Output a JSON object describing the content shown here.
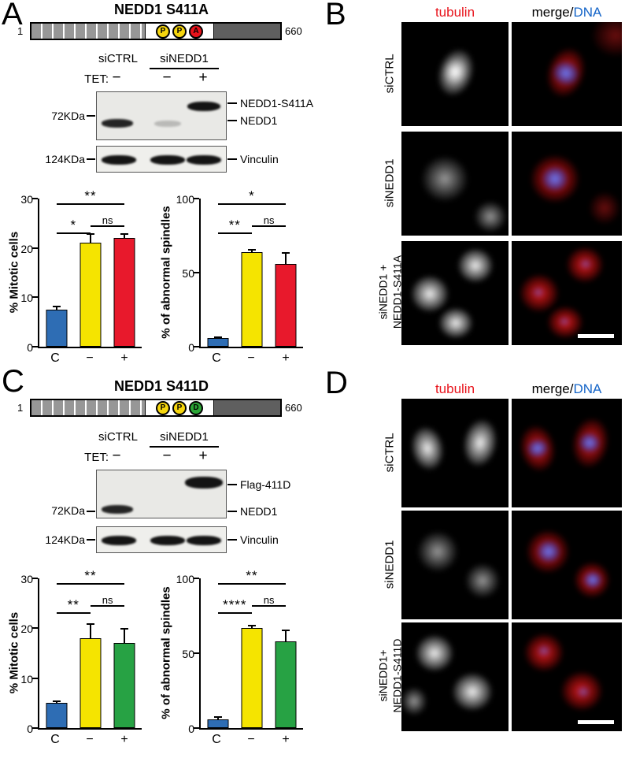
{
  "colors": {
    "tubulin_header": "#e8131b",
    "dna_header": "#1565c8",
    "bar_blue": "#2e6db4",
    "bar_yellow": "#f5e400",
    "bar_red": "#e8192c",
    "bar_green": "#27a244"
  },
  "site_colors": {
    "P": "#f6d60e",
    "A": "#e8131b",
    "D": "#2ba536"
  },
  "panels": {
    "A": {
      "label": "A",
      "title": "NEDD1 S411A",
      "schematic": {
        "start_aa": "1",
        "end_aa": "660",
        "sites": [
          {
            "letter": "P"
          },
          {
            "letter": "P"
          },
          {
            "letter": "A"
          }
        ]
      },
      "blot": {
        "group_labels": [
          "siCTRL",
          "siNEDD1"
        ],
        "tet_label": "TET:",
        "tet_values": [
          "−",
          "−",
          "+"
        ],
        "marker_labels": [
          "72KDa",
          "124KDa"
        ],
        "band_labels": [
          "NEDD1-S411A",
          "NEDD1"
        ],
        "loading_label": "Vinculin"
      }
    },
    "B": {
      "label": "B",
      "headers": {
        "tubulin": "tubulin",
        "merge": "merge/",
        "dna": "DNA"
      },
      "rows": [
        {
          "label_lines": [
            "siCTRL"
          ]
        },
        {
          "label_lines": [
            "siNEDD1"
          ]
        },
        {
          "label_lines": [
            "siNEDD1 +",
            "NEDD1-S411A"
          ]
        }
      ]
    },
    "C": {
      "label": "C",
      "title": "NEDD1 S411D",
      "schematic": {
        "start_aa": "1",
        "end_aa": "660",
        "sites": [
          {
            "letter": "P"
          },
          {
            "letter": "P"
          },
          {
            "letter": "D"
          }
        ]
      },
      "blot": {
        "group_labels": [
          "siCTRL",
          "siNEDD1"
        ],
        "tet_label": "TET:",
        "tet_values": [
          "−",
          "−",
          "+"
        ],
        "marker_labels": [
          "72KDa",
          "124KDa"
        ],
        "band_labels": [
          "Flag-411D",
          "NEDD1"
        ],
        "loading_label": "Vinculin"
      }
    },
    "D": {
      "label": "D",
      "headers": {
        "tubulin": "tubulin",
        "merge": "merge/",
        "dna": "DNA"
      },
      "rows": [
        {
          "label_lines": [
            "siCTRL"
          ]
        },
        {
          "label_lines": [
            "siNEDD1"
          ]
        },
        {
          "label_lines": [
            "siNEDD1+",
            "NEDD1-S411D"
          ]
        }
      ]
    }
  },
  "chart_data": [
    {
      "type": "bar",
      "panel": "A",
      "ylabel": "% Mitotic cells",
      "categories": [
        "C",
        "−",
        "+"
      ],
      "values": [
        7.5,
        21,
        22
      ],
      "errors": [
        0.8,
        2,
        1
      ],
      "colors": [
        "#2e6db4",
        "#f5e400",
        "#e8192c"
      ],
      "ylim": [
        0,
        30
      ],
      "yticks": [
        0,
        10,
        20,
        30
      ],
      "grid": false,
      "legend": "none",
      "significance": [
        {
          "pair": [
            0,
            1
          ],
          "label": "*",
          "row": "low"
        },
        {
          "pair": [
            1,
            2
          ],
          "label": "ns",
          "row": "mid"
        },
        {
          "pair": [
            0,
            2
          ],
          "label": "**",
          "row": "top"
        }
      ]
    },
    {
      "type": "bar",
      "panel": "A",
      "ylabel": "% of abnormal spindles",
      "categories": [
        "C",
        "−",
        "+"
      ],
      "values": [
        6,
        64,
        56
      ],
      "errors": [
        1,
        2,
        8
      ],
      "colors": [
        "#2e6db4",
        "#f5e400",
        "#e8192c"
      ],
      "ylim": [
        0,
        100
      ],
      "yticks": [
        0,
        50,
        100
      ],
      "grid": false,
      "legend": "none",
      "significance": [
        {
          "pair": [
            0,
            1
          ],
          "label": "**",
          "row": "low"
        },
        {
          "pair": [
            1,
            2
          ],
          "label": "ns",
          "row": "mid"
        },
        {
          "pair": [
            0,
            2
          ],
          "label": "*",
          "row": "top"
        }
      ]
    },
    {
      "type": "bar",
      "panel": "C",
      "ylabel": "% Mitotic cells",
      "categories": [
        "C",
        "−",
        "+"
      ],
      "values": [
        5,
        18,
        17
      ],
      "errors": [
        0.5,
        3,
        3
      ],
      "colors": [
        "#2e6db4",
        "#f5e400",
        "#27a244"
      ],
      "ylim": [
        0,
        30
      ],
      "yticks": [
        0,
        10,
        20,
        30
      ],
      "grid": false,
      "legend": "none",
      "significance": [
        {
          "pair": [
            0,
            1
          ],
          "label": "**",
          "row": "low"
        },
        {
          "pair": [
            1,
            2
          ],
          "label": "ns",
          "row": "mid"
        },
        {
          "pair": [
            0,
            2
          ],
          "label": "**",
          "row": "top"
        }
      ]
    },
    {
      "type": "bar",
      "panel": "C",
      "ylabel": "% of abnormal spindles",
      "categories": [
        "C",
        "−",
        "+"
      ],
      "values": [
        6,
        67,
        58
      ],
      "errors": [
        2,
        2,
        8
      ],
      "colors": [
        "#2e6db4",
        "#f5e400",
        "#27a244"
      ],
      "ylim": [
        0,
        100
      ],
      "yticks": [
        0,
        50,
        100
      ],
      "grid": false,
      "legend": "none",
      "significance": [
        {
          "pair": [
            0,
            1
          ],
          "label": "****",
          "row": "low"
        },
        {
          "pair": [
            1,
            2
          ],
          "label": "ns",
          "row": "mid"
        },
        {
          "pair": [
            0,
            2
          ],
          "label": "**",
          "row": "top"
        }
      ]
    }
  ]
}
